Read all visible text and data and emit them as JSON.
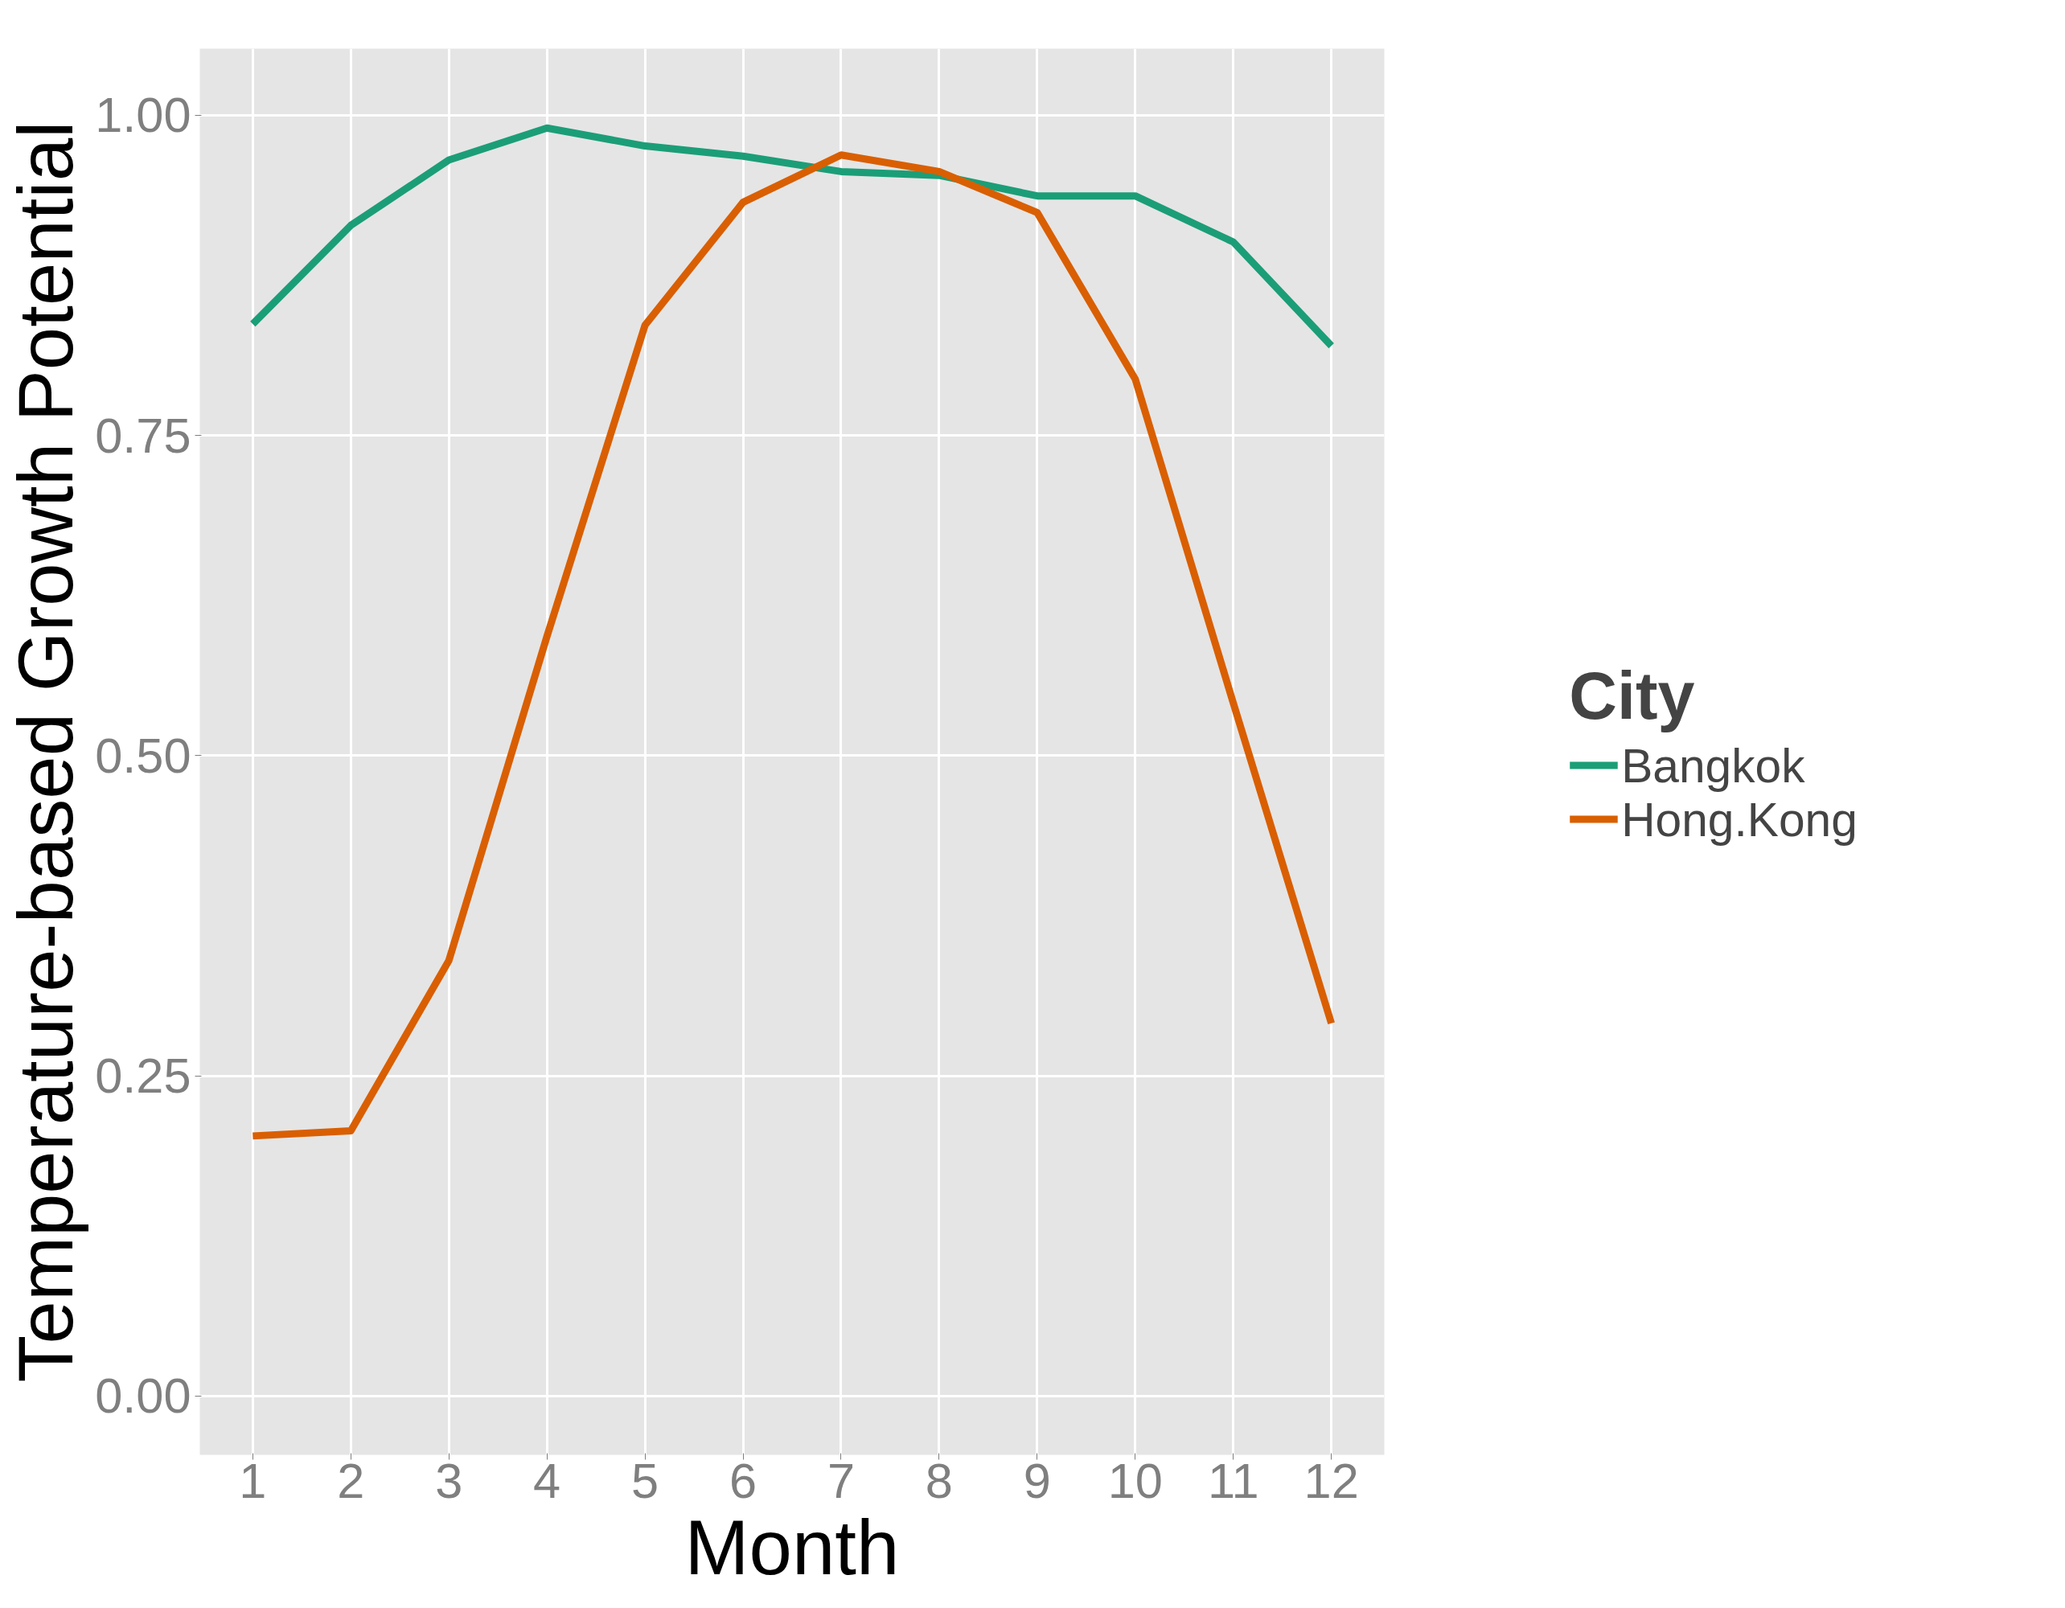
{
  "chart_data": {
    "type": "line",
    "xlabel": "Month",
    "ylabel": "Temperature-based Growth Potential",
    "legend_title": "City",
    "x": [
      1,
      2,
      3,
      4,
      5,
      6,
      7,
      8,
      9,
      10,
      11,
      12
    ],
    "series": [
      {
        "name": "Bangkok",
        "color": "#1b9e77",
        "values": [
          0.837,
          0.914,
          0.965,
          0.99,
          0.976,
          0.968,
          0.956,
          0.953,
          0.937,
          0.937,
          0.901,
          0.82
        ]
      },
      {
        "name": "Hong.Kong",
        "color": "#d95f02",
        "values": [
          0.203,
          0.207,
          0.34,
          0.593,
          0.836,
          0.932,
          0.969,
          0.956,
          0.924,
          0.794,
          0.541,
          0.291
        ]
      }
    ],
    "xlim": [
      0.46,
      12.54
    ],
    "ylim": [
      -0.046,
      1.052
    ],
    "xticks": [
      1,
      2,
      3,
      4,
      5,
      6,
      7,
      8,
      9,
      10,
      11,
      12
    ],
    "yticks": [
      {
        "value": 0,
        "label": "0.00"
      },
      {
        "value": 0.25,
        "label": "0.25"
      },
      {
        "value": 0.5,
        "label": "0.50"
      },
      {
        "value": 0.75,
        "label": "0.75"
      },
      {
        "value": 1,
        "label": "1.00"
      }
    ],
    "grid": true,
    "legend": "right",
    "marker": "none",
    "line_style": "solid"
  }
}
